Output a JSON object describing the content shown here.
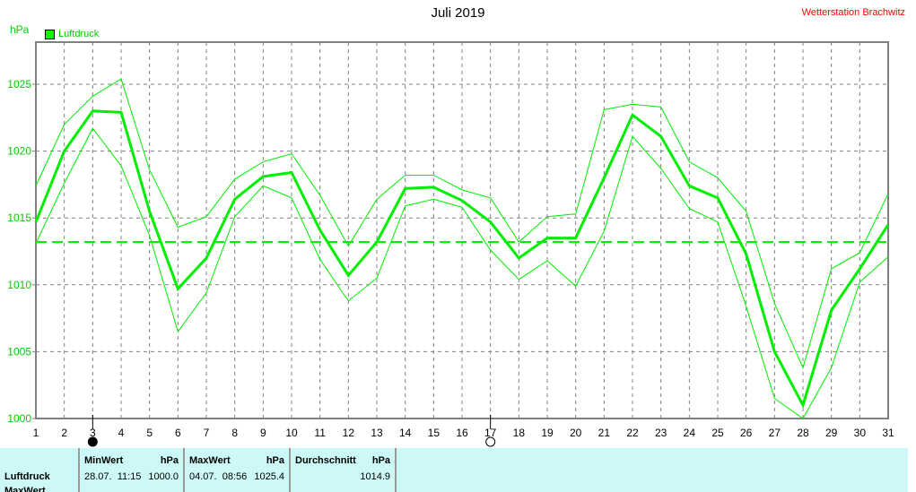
{
  "title": "Juli 2019",
  "station": "Wetterstation Brachwitz",
  "unit": "hPa",
  "legend": "Luftdruck",
  "colors": {
    "series": "#00ee00",
    "grid": "#808080",
    "station": "#ff0000",
    "panel": "#ccf8f8"
  },
  "chart_data": {
    "type": "line",
    "title": "Juli 2019",
    "ylabel": "hPa",
    "ylim": [
      1000,
      1030
    ],
    "yticks": [
      1000,
      1005,
      1010,
      1015,
      1020,
      1025
    ],
    "x": [
      1,
      2,
      3,
      4,
      5,
      6,
      7,
      8,
      9,
      10,
      11,
      12,
      13,
      14,
      15,
      16,
      17,
      18,
      19,
      20,
      21,
      22,
      23,
      24,
      25,
      26,
      27,
      28,
      29,
      30,
      31
    ],
    "grid": true,
    "legend_position": "top-left",
    "series": [
      {
        "name": "Luftdruck",
        "role": "mean",
        "values": [
          1014.7,
          1020.0,
          1023.0,
          1022.9,
          1015.5,
          1009.7,
          1012.0,
          1016.4,
          1018.1,
          1018.4,
          1014.1,
          1010.7,
          1013.2,
          1017.2,
          1017.3,
          1016.3,
          1014.7,
          1012.0,
          1013.5,
          1013.5,
          1018.0,
          1022.7,
          1021.1,
          1017.4,
          1016.5,
          1012.3,
          1005.0,
          1001.0,
          1008.1,
          1011.2,
          1014.5
        ]
      },
      {
        "role": "max",
        "values": [
          1017.4,
          1022.0,
          1024.1,
          1025.4,
          1018.6,
          1014.3,
          1015.1,
          1017.9,
          1019.2,
          1019.8,
          1016.7,
          1012.9,
          1016.4,
          1018.2,
          1018.2,
          1017.1,
          1016.5,
          1013.2,
          1015.1,
          1015.3,
          1023.1,
          1023.5,
          1023.3,
          1019.2,
          1018.0,
          1015.5,
          1008.6,
          1003.8,
          1011.2,
          1012.4,
          1016.8
        ]
      },
      {
        "role": "min",
        "values": [
          1013.1,
          1017.6,
          1021.7,
          1018.9,
          1013.7,
          1006.5,
          1009.4,
          1015.1,
          1017.4,
          1016.5,
          1011.9,
          1008.8,
          1010.5,
          1015.9,
          1016.4,
          1015.8,
          1012.6,
          1010.4,
          1011.8,
          1009.9,
          1014.0,
          1021.1,
          1018.7,
          1015.7,
          1014.7,
          1008.4,
          1001.5,
          1000.0,
          1003.8,
          1010.2,
          1012.1
        ]
      }
    ],
    "reference_line": 1013.2,
    "moon_markers": [
      {
        "day": 3,
        "phase": "new"
      },
      {
        "day": 17,
        "phase": "full"
      }
    ]
  },
  "panel": {
    "row_labels": [
      "Luftdruck",
      "MaxWert"
    ],
    "min": {
      "header": "MinWert",
      "unit": "hPa",
      "date": "28.07.",
      "time": "11:15",
      "value": "1000.0"
    },
    "max": {
      "header": "MaxWert",
      "unit": "hPa",
      "date": "04.07.",
      "time": "08:56",
      "value": "1025.4"
    },
    "avg": {
      "header": "Durchschnitt",
      "unit": "hPa",
      "value": "1014.9"
    }
  }
}
